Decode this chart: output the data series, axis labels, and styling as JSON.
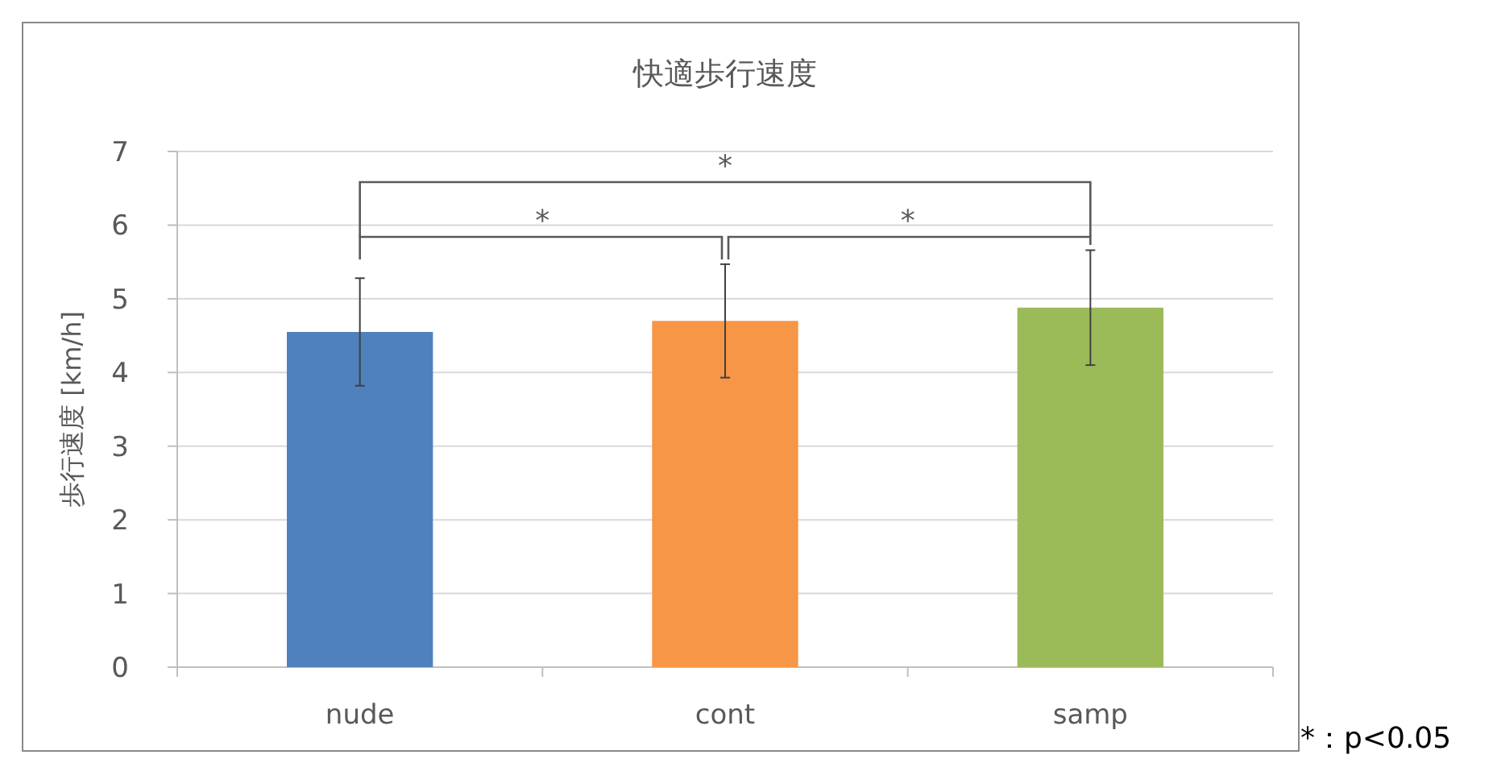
{
  "chart_data": {
    "type": "bar",
    "title": "快適歩行速度",
    "ylabel": "歩行速度 [km/h]",
    "categories": [
      "nude",
      "cont",
      "samp"
    ],
    "values": [
      4.55,
      4.7,
      4.88
    ],
    "errors": [
      0.73,
      0.77,
      0.78
    ],
    "colors": [
      "#4f81bd",
      "#f79646",
      "#9bbb59"
    ],
    "ylim": [
      0,
      7
    ],
    "yticks": [
      0,
      1,
      2,
      3,
      4,
      5,
      6,
      7
    ],
    "grid": "y",
    "annotations": [
      "*",
      "*",
      "*",
      "*：p<0.05"
    ]
  }
}
